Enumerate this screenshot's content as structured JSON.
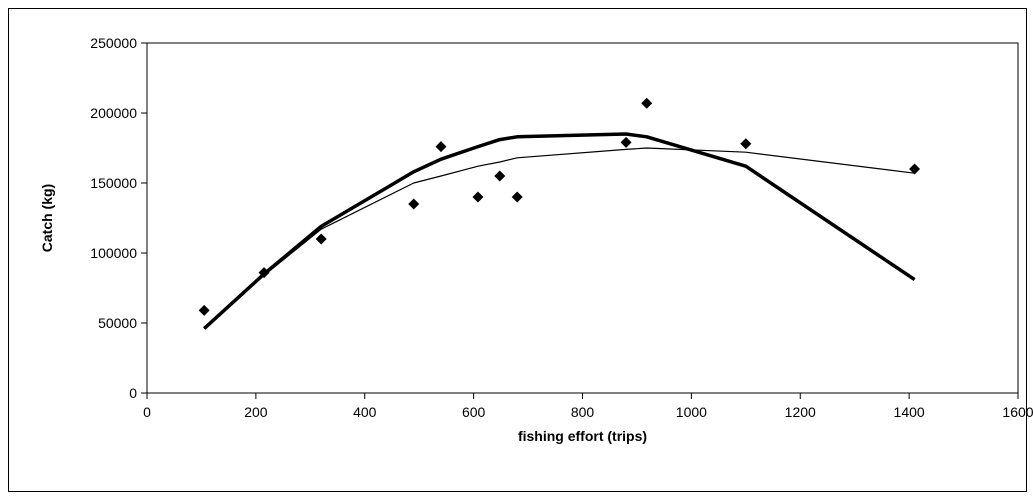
{
  "chart_data": {
    "type": "scatter",
    "title": "",
    "xlabel": "fishing effort (trips)",
    "ylabel": "Catch (kg)",
    "xlim": [
      0,
      1600
    ],
    "ylim": [
      0,
      250000
    ],
    "xticks": [
      0,
      200,
      400,
      600,
      800,
      1000,
      1200,
      1400,
      1600
    ],
    "yticks": [
      0,
      50000,
      100000,
      150000,
      200000,
      250000
    ],
    "grid": false,
    "legend": "none",
    "series": [
      {
        "kind": "scatter",
        "marker": "diamond",
        "color": "#000000",
        "x": [
          105,
          215,
          320,
          490,
          540,
          608,
          648,
          680,
          880,
          918,
          1100,
          1410
        ],
        "y": [
          59000,
          86000,
          110000,
          135000,
          176000,
          140000,
          155000,
          140000,
          179000,
          207000,
          178000,
          160000
        ]
      },
      {
        "kind": "line",
        "style": "thick",
        "color": "#000000",
        "x": [
          105,
          215,
          320,
          490,
          540,
          608,
          648,
          680,
          880,
          918,
          1100,
          1410
        ],
        "y": [
          46000,
          85000,
          119000,
          158000,
          167000,
          176000,
          181000,
          183000,
          185000,
          183000,
          162000,
          81000
        ]
      },
      {
        "kind": "line",
        "style": "thin",
        "color": "#000000",
        "x": [
          105,
          215,
          320,
          490,
          540,
          608,
          648,
          680,
          880,
          918,
          1100,
          1410
        ],
        "y": [
          46000,
          84000,
          117000,
          150000,
          155000,
          162000,
          165000,
          168000,
          174000,
          175000,
          172000,
          157000
        ]
      }
    ]
  }
}
